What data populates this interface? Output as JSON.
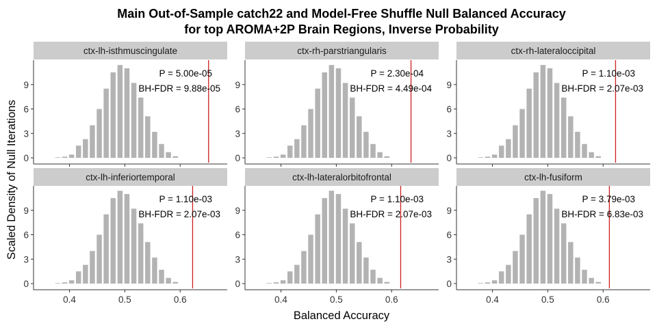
{
  "chart_data": {
    "type": "bar",
    "title": [
      "Main Out-of-Sample catch22 and Model-Free Shuffle Null Balanced Accuracy",
      "for top AROMA+2P Brain Regions, Inverse Probability"
    ],
    "xlabel": "Balanced Accuracy",
    "ylabel": "Scaled Density of Null Iterations",
    "xlim": [
      0.335,
      0.685
    ],
    "ylim": [
      0,
      12
    ],
    "x_ticks": [
      0.4,
      0.5,
      0.6
    ],
    "x_tick_labels": [
      "0.4",
      "0.5",
      "0.6"
    ],
    "y_ticks": [
      0,
      3,
      6,
      9
    ],
    "y_tick_labels": [
      "0",
      "3",
      "6",
      "9"
    ],
    "colors": {
      "bars": "#b3b3b3",
      "observed_line": "#cc1f1f",
      "strip": "#cccccc"
    },
    "null_histogram": {
      "bin_centers": [
        0.3788,
        0.3913,
        0.4038,
        0.4163,
        0.4288,
        0.4413,
        0.4538,
        0.4663,
        0.4788,
        0.4913,
        0.5038,
        0.5163,
        0.5288,
        0.5413,
        0.5538,
        0.5663,
        0.5788,
        0.5913
      ],
      "density": [
        0.05,
        0.15,
        0.4,
        1.5,
        2.3,
        4.0,
        6.0,
        8.5,
        10.5,
        11.4,
        11.0,
        9.2,
        7.4,
        5.1,
        3.2,
        1.7,
        0.7,
        0.2
      ]
    },
    "panels": [
      {
        "region": "ctx-lh-isthmuscingulate",
        "observed": 0.6513,
        "p_label": "P = 5.00e-05",
        "fdr_label": "BH-FDR = 9.88e-05"
      },
      {
        "region": "ctx-rh-parstriangularis",
        "observed": 0.635,
        "p_label": "P = 2.30e-04",
        "fdr_label": "BH-FDR = 4.49e-04"
      },
      {
        "region": "ctx-rh-lateraloccipital",
        "observed": 0.6225,
        "p_label": "P = 1.10e-03",
        "fdr_label": "BH-FDR = 2.07e-03"
      },
      {
        "region": "ctx-lh-inferiortemporal",
        "observed": 0.6225,
        "p_label": "P = 1.10e-03",
        "fdr_label": "BH-FDR = 2.07e-03"
      },
      {
        "region": "ctx-lh-lateralorbitofrontal",
        "observed": 0.6163,
        "p_label": "P = 1.10e-03",
        "fdr_label": "BH-FDR = 2.07e-03"
      },
      {
        "region": "ctx-lh-fusiform",
        "observed": 0.6113,
        "p_label": "P = 3.79e-03",
        "fdr_label": "BH-FDR = 6.83e-03"
      }
    ]
  }
}
